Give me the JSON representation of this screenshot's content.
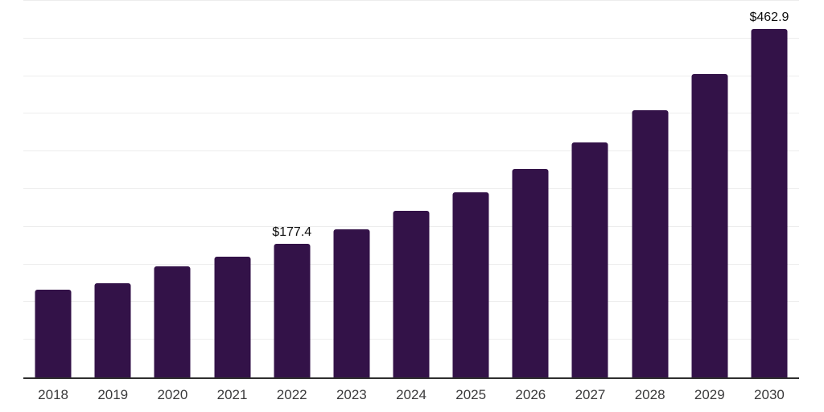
{
  "chart_data": {
    "type": "bar",
    "title": "",
    "xlabel": "",
    "ylabel": "",
    "categories": [
      "2018",
      "2019",
      "2020",
      "2021",
      "2022",
      "2023",
      "2024",
      "2025",
      "2026",
      "2027",
      "2028",
      "2029",
      "2030"
    ],
    "values": [
      116,
      125,
      147,
      160,
      177.4,
      197,
      221,
      246,
      277,
      312,
      355,
      403,
      462.9
    ],
    "value_labels": [
      "",
      "",
      "",
      "",
      "$177.4",
      "",
      "",
      "",
      "",
      "",
      "",
      "",
      "$462.9"
    ],
    "ylim": [
      0,
      500
    ],
    "grid_step": 50,
    "grid": "horizontal-only",
    "legend_position": "none",
    "bar_color": "#331248",
    "axis_line_color": "#2e2e2e",
    "gridline_color": "#ededed",
    "tick_label_color": "#3a3a3b",
    "value_label_color": "#0d0d0d",
    "background_color": "#ffffff"
  }
}
